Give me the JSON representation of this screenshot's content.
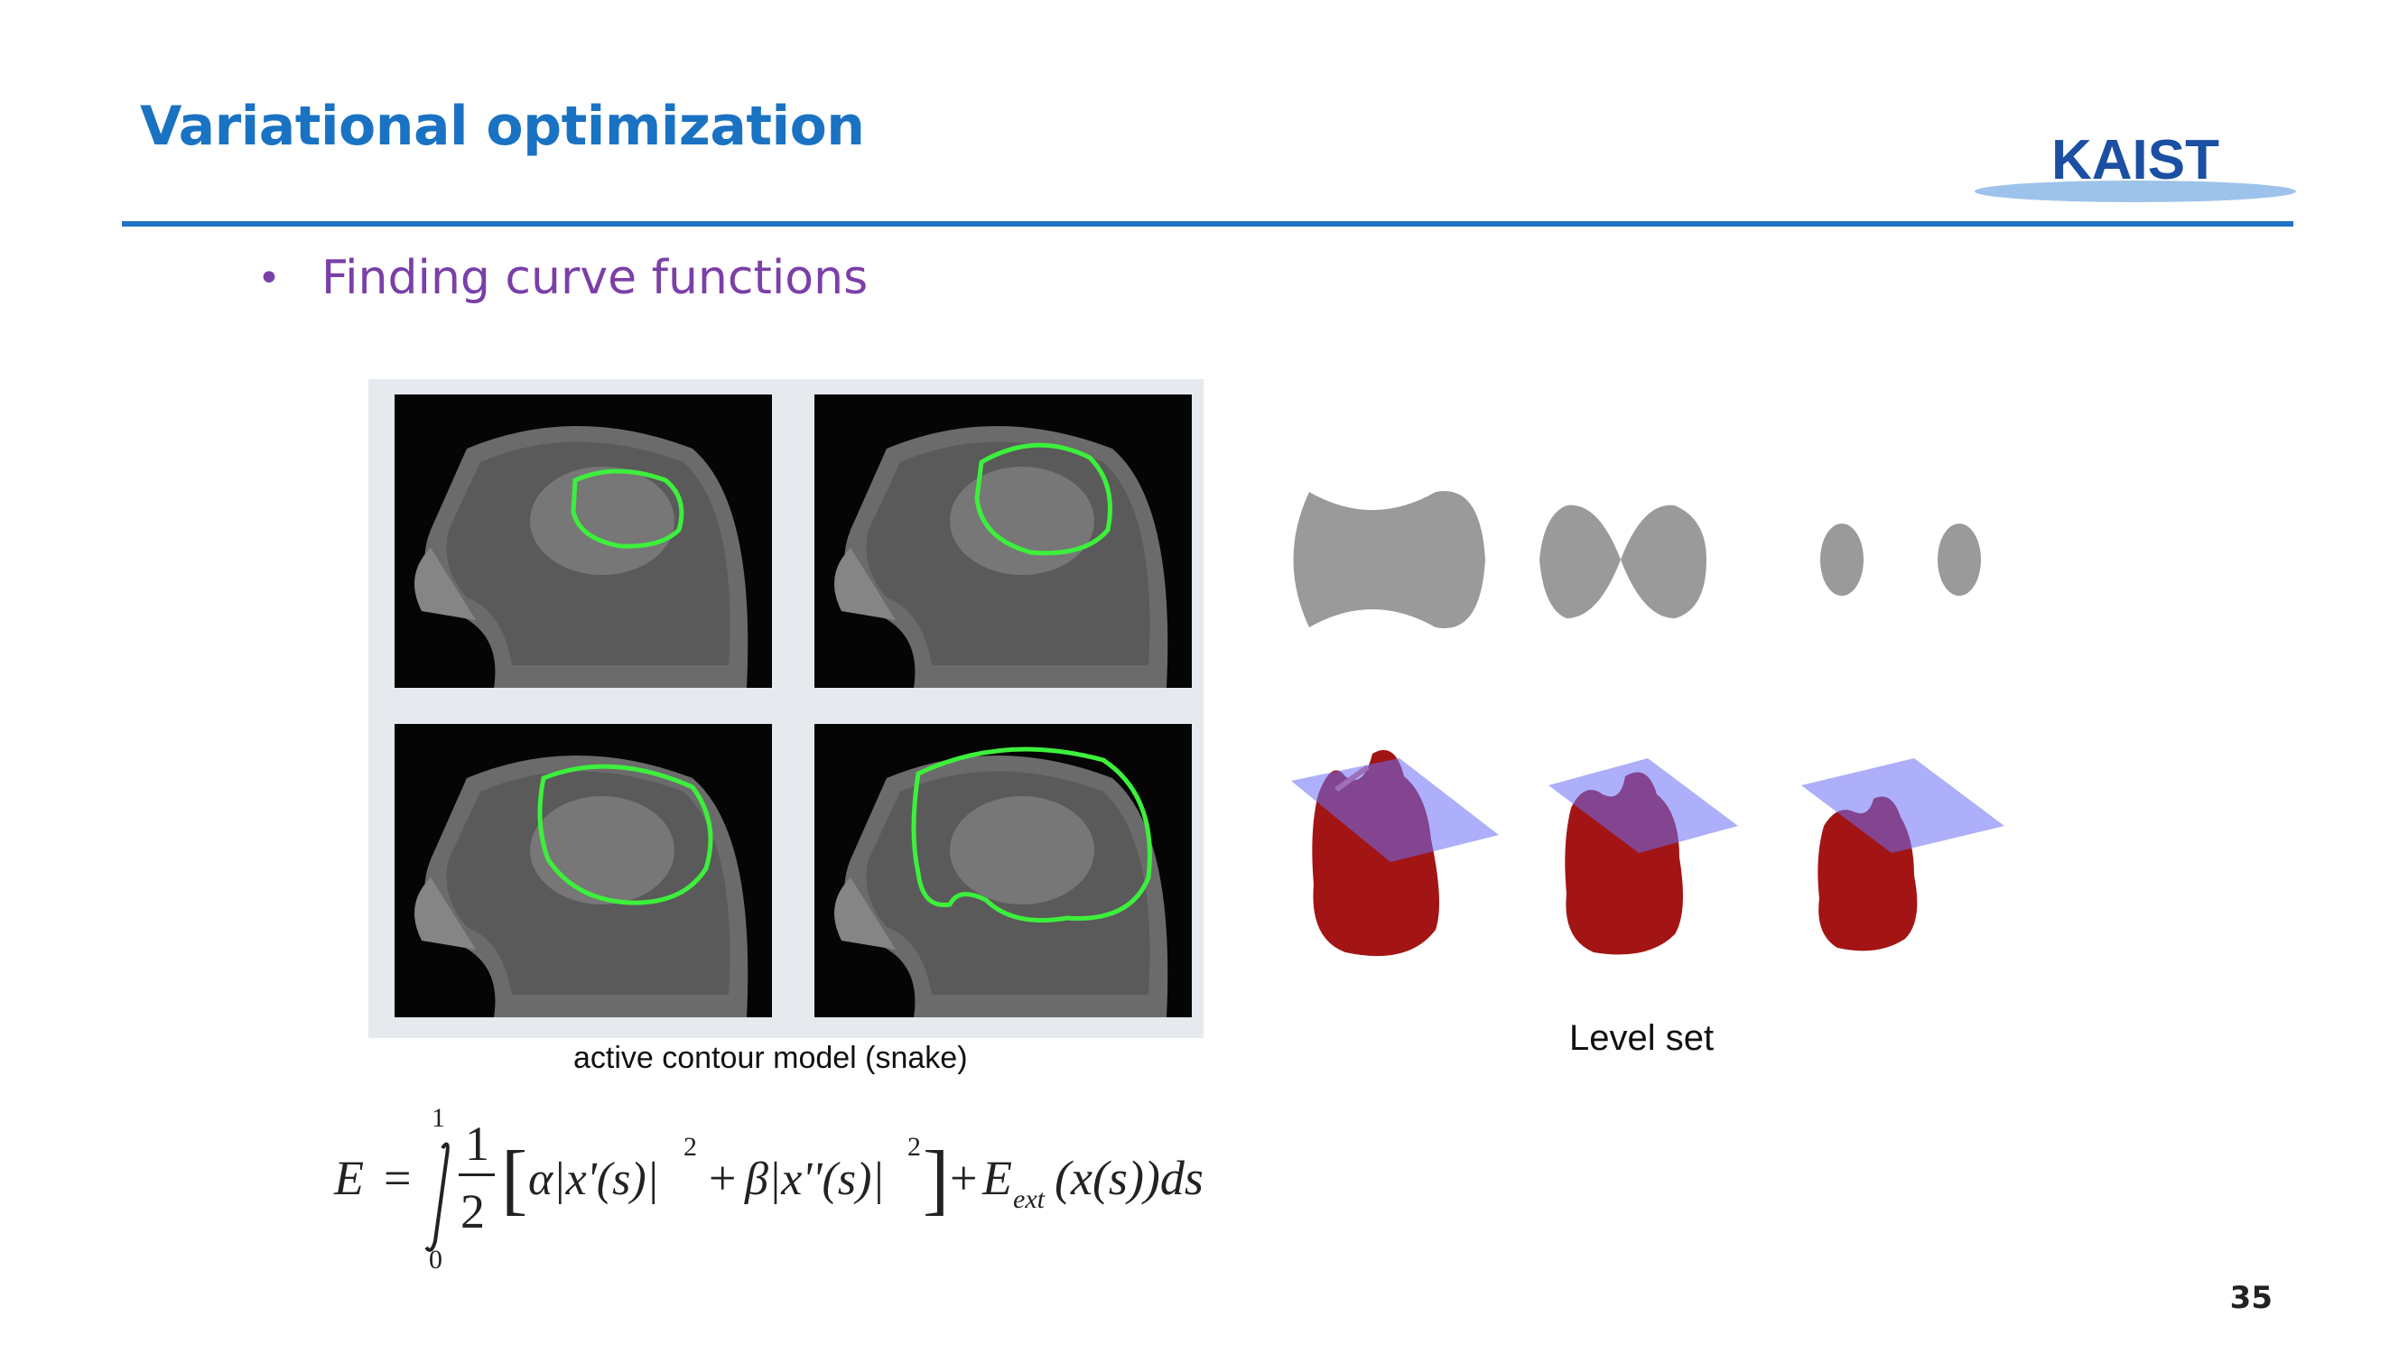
{
  "slide": {
    "title": "Variational optimization",
    "logo_text": "KAIST",
    "bullet": "Finding curve functions",
    "page_number": "35"
  },
  "figures": {
    "snake_caption": "active contour model (snake)",
    "levelset_caption": "Level set"
  },
  "formula": {
    "lhs": "E",
    "upper_limit": "1",
    "lower_limit": "0",
    "frac_num": "1",
    "frac_den": "2",
    "term1": "α|x'(s)|",
    "term2": "β|x''(s)|",
    "exponent": "2",
    "ext": "E",
    "ext_sub": "ext",
    "tail": "(x(s))ds"
  },
  "colors": {
    "title": "#1a72c2",
    "bullet": "#7b3fa8",
    "rule": "#1f73c4",
    "contour": "#3cf03c"
  }
}
